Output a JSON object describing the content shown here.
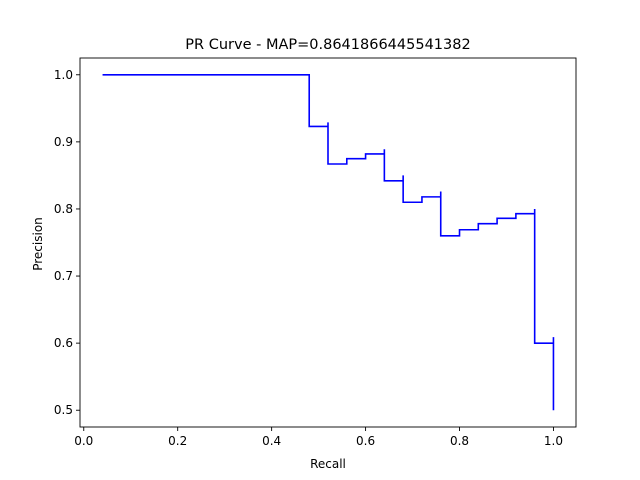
{
  "chart_data": {
    "type": "line",
    "title": "PR Curve - MAP=0.8641866445541382",
    "xlabel": "Recall",
    "ylabel": "Precision",
    "xlim": [
      -0.008,
      1.048
    ],
    "ylim": [
      0.475,
      1.025
    ],
    "grid": false,
    "legend": "none",
    "line_color": "#0000ff",
    "xticks": [
      0.0,
      0.2,
      0.4,
      0.6,
      0.8,
      1.0
    ],
    "xtick_labels": [
      "0.0",
      "0.2",
      "0.4",
      "0.6",
      "0.8",
      "1.0"
    ],
    "yticks": [
      0.5,
      0.6,
      0.7,
      0.8,
      0.9,
      1.0
    ],
    "ytick_labels": [
      "0.5",
      "0.6",
      "0.7",
      "0.8",
      "0.9",
      "1.0"
    ],
    "series": [
      {
        "draw": "steps-post",
        "x": [
          0.04,
          0.48,
          0.48,
          0.52,
          0.52,
          0.56,
          0.6,
          0.64,
          0.64,
          0.68,
          0.68,
          0.72,
          0.76,
          0.76,
          0.8,
          0.84,
          0.88,
          0.92,
          0.96,
          0.96,
          1.0,
          1.0
        ],
        "y": [
          1.0,
          1.0,
          0.923,
          0.929,
          0.867,
          0.875,
          0.882,
          0.889,
          0.842,
          0.85,
          0.81,
          0.818,
          0.826,
          0.76,
          0.769,
          0.778,
          0.786,
          0.793,
          0.8,
          0.6,
          0.609,
          0.5
        ]
      }
    ]
  }
}
